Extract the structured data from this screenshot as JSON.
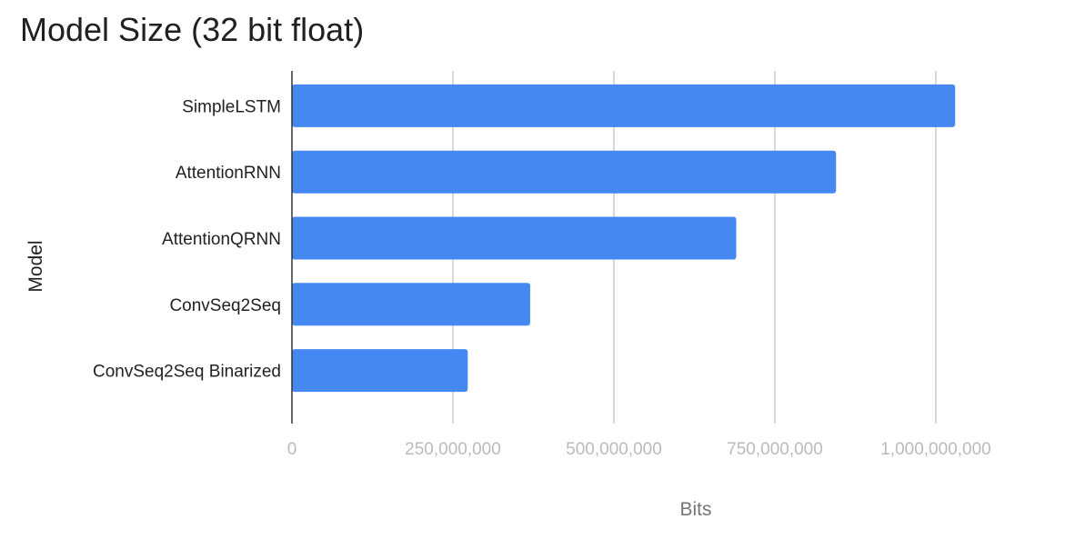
{
  "chart_data": {
    "type": "bar",
    "orientation": "horizontal",
    "title": "Model Size (32 bit float)",
    "xlabel": "Bits",
    "ylabel": "Model",
    "categories": [
      "SimpleLSTM",
      "AttentionRNN",
      "AttentionQRNN",
      "ConvSeq2Seq",
      "ConvSeq2Seq Binarized"
    ],
    "values": [
      1030000000,
      845000000,
      690000000,
      370000000,
      273000000
    ],
    "xlim": [
      0,
      1000000000
    ],
    "xticks": [
      0,
      250000000,
      500000000,
      750000000,
      1000000000
    ],
    "xtick_labels": [
      "0",
      "250,000,000",
      "500,000,000",
      "750,000,000",
      "1,000,000,000"
    ],
    "grid": "vertical",
    "legend": "none",
    "colors": {
      "bar": "#4688f1",
      "grid": "#cccccc",
      "axis": "#333333",
      "tick_label": "#bbbbbb",
      "category_label": "#222222",
      "axis_title": "#757575",
      "title": "#212121"
    }
  }
}
